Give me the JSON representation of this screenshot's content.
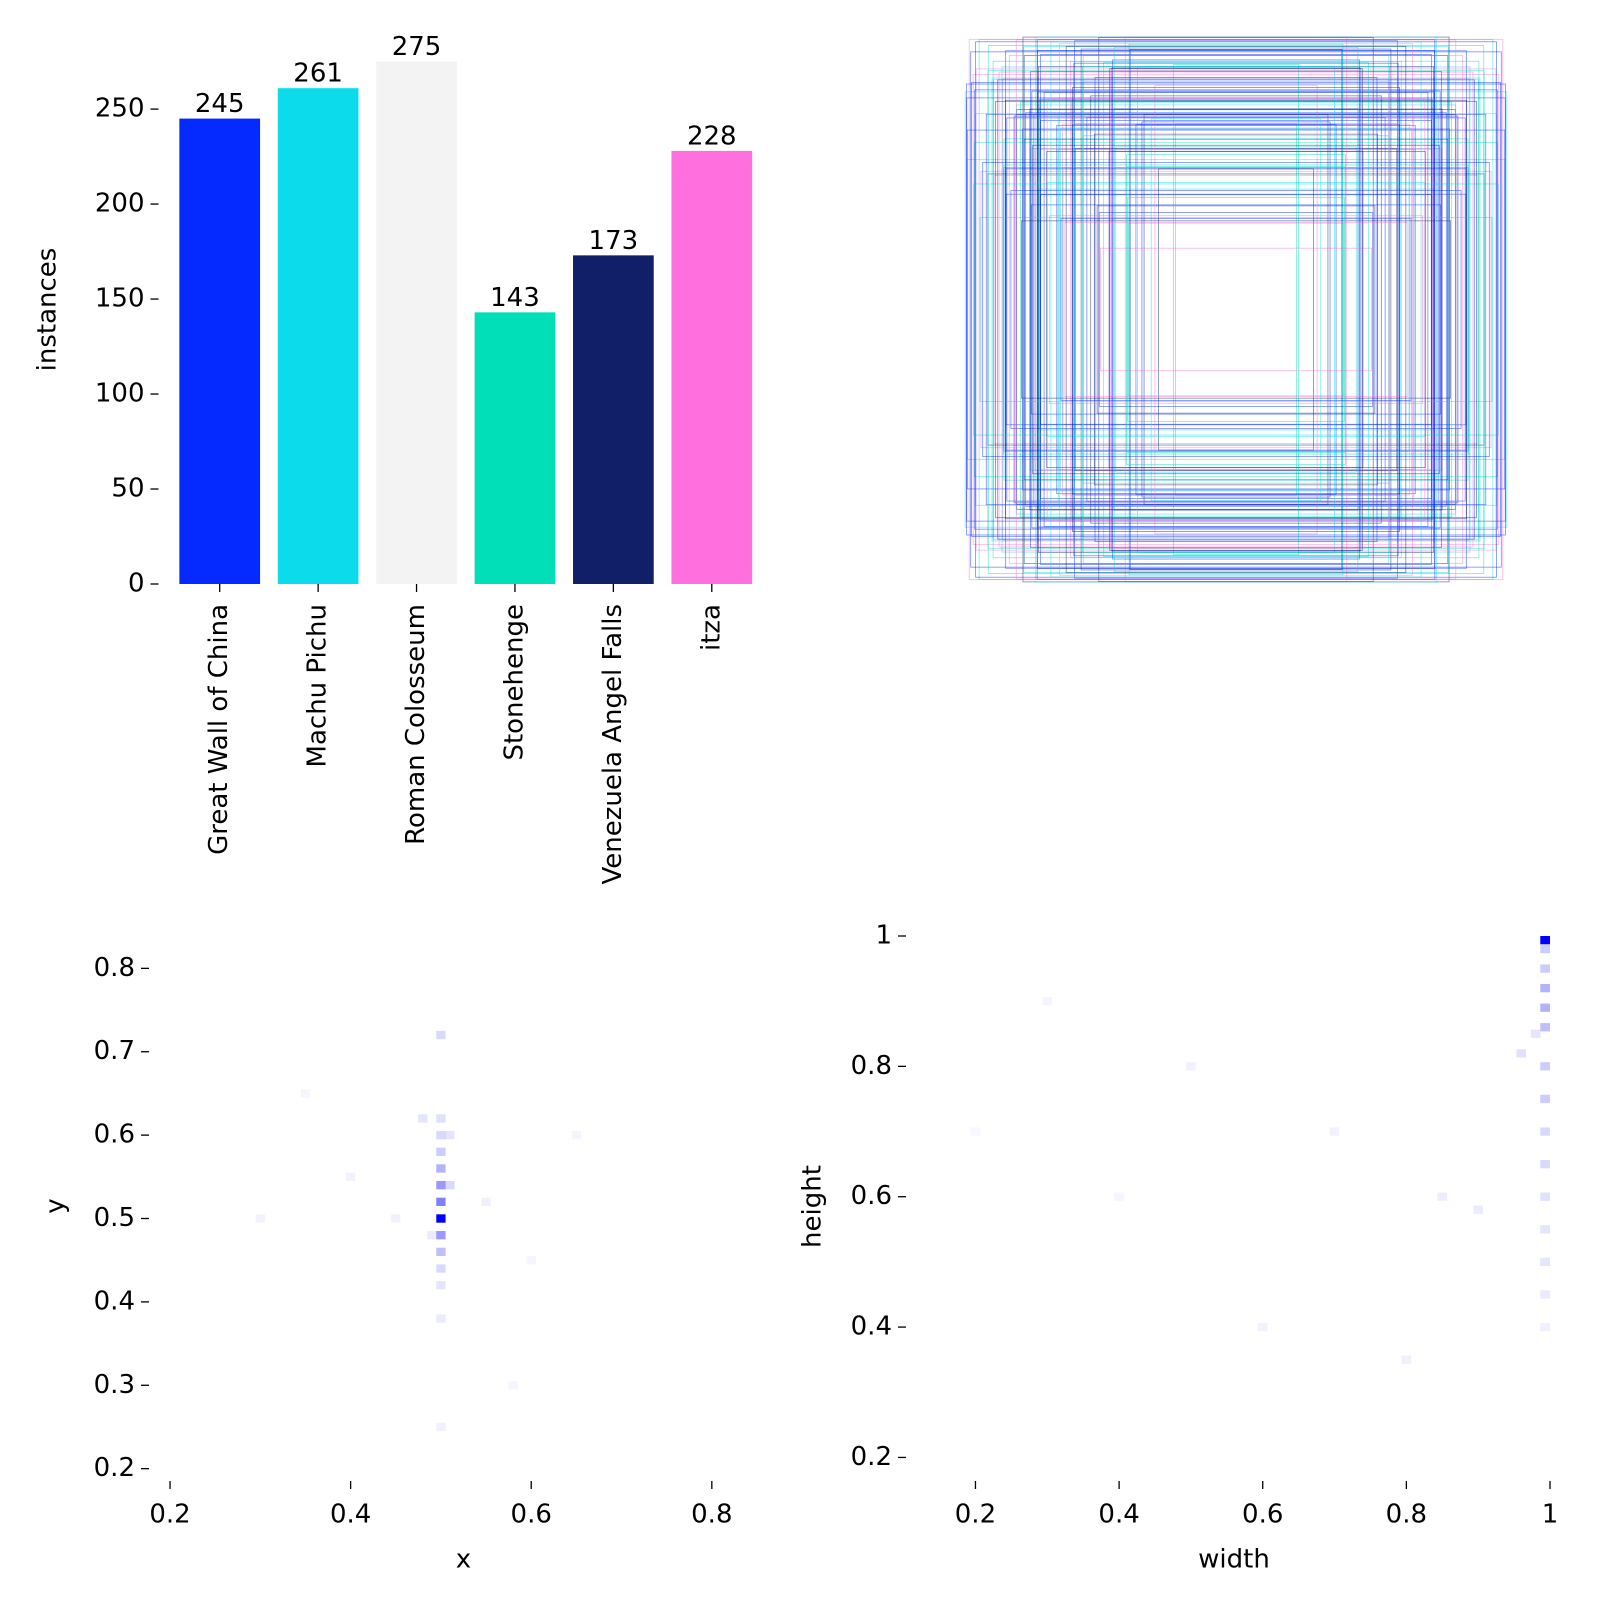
{
  "chart_data": [
    {
      "type": "bar",
      "ylabel": "instances",
      "categories": [
        "Great Wall of China",
        "Machu Pichu",
        "Roman Colosseum",
        "Stonehenge",
        "Venezuela Angel Falls",
        "itza"
      ],
      "values": [
        245,
        261,
        275,
        143,
        173,
        228
      ],
      "colors": [
        "#042aff",
        "#0bdbeb",
        "#f3f3f3",
        "#00dfb7",
        "#111f68",
        "#ff6fdd"
      ],
      "ylim": [
        0,
        289
      ],
      "yticks": [
        0,
        50,
        100,
        150,
        200,
        250
      ]
    },
    {
      "type": "boxes"
    },
    {
      "type": "heatmap",
      "xlabel": "x",
      "ylabel": "y",
      "color": "#0000ff",
      "xlim": [
        0.19,
        0.86
      ],
      "ylim": [
        0.19,
        0.84
      ],
      "xticks": [
        0.2,
        0.4,
        0.6,
        0.8
      ],
      "yticks": [
        0.2,
        0.3,
        0.4,
        0.5,
        0.6,
        0.7,
        0.8
      ],
      "x": [
        0.5,
        0.5,
        0.5,
        0.5,
        0.5,
        0.5,
        0.5,
        0.5,
        0.5,
        0.5,
        0.5,
        0.5,
        0.5,
        0.51,
        0.51,
        0.49,
        0.48,
        0.45,
        0.55,
        0.4,
        0.6,
        0.3,
        0.5,
        0.35,
        0.65,
        0.58
      ],
      "y": [
        0.5,
        0.52,
        0.54,
        0.56,
        0.58,
        0.6,
        0.62,
        0.72,
        0.48,
        0.46,
        0.44,
        0.42,
        0.38,
        0.54,
        0.6,
        0.48,
        0.62,
        0.5,
        0.52,
        0.55,
        0.45,
        0.5,
        0.25,
        0.65,
        0.6,
        0.3
      ],
      "values": [
        1,
        0.5,
        0.4,
        0.3,
        0.2,
        0.15,
        0.12,
        0.15,
        0.4,
        0.25,
        0.15,
        0.1,
        0.08,
        0.15,
        0.1,
        0.08,
        0.1,
        0.06,
        0.06,
        0.05,
        0.04,
        0.05,
        0.06,
        0.04,
        0.04,
        0.04
      ]
    },
    {
      "type": "heatmap",
      "xlabel": "width",
      "ylabel": "height",
      "color": "#0000ff",
      "xlim": [
        0.12,
        1.0
      ],
      "ylim": [
        0.17,
        1.0
      ],
      "xticks": [
        0.2,
        0.4,
        0.6,
        0.8,
        1.0
      ],
      "yticks": [
        0.2,
        0.4,
        0.6,
        0.8,
        1.0
      ],
      "x": [
        1.0,
        1.0,
        1.0,
        1.0,
        1.0,
        1.0,
        1.0,
        1.0,
        1.0,
        1.0,
        1.0,
        1.0,
        1.0,
        1.0,
        1.0,
        0.98,
        0.96,
        0.9,
        0.85,
        0.7,
        0.5,
        0.3,
        0.6,
        0.8,
        0.4,
        0.2
      ],
      "y": [
        1.0,
        0.98,
        0.95,
        0.92,
        0.89,
        0.86,
        0.8,
        0.75,
        0.7,
        0.65,
        0.6,
        0.55,
        0.5,
        0.45,
        0.4,
        0.85,
        0.82,
        0.58,
        0.6,
        0.7,
        0.8,
        0.9,
        0.4,
        0.35,
        0.6,
        0.7
      ],
      "values": [
        1,
        0.2,
        0.2,
        0.3,
        0.3,
        0.25,
        0.2,
        0.2,
        0.15,
        0.15,
        0.12,
        0.1,
        0.1,
        0.08,
        0.06,
        0.1,
        0.12,
        0.08,
        0.07,
        0.05,
        0.05,
        0.04,
        0.05,
        0.06,
        0.04,
        0.03
      ]
    }
  ]
}
